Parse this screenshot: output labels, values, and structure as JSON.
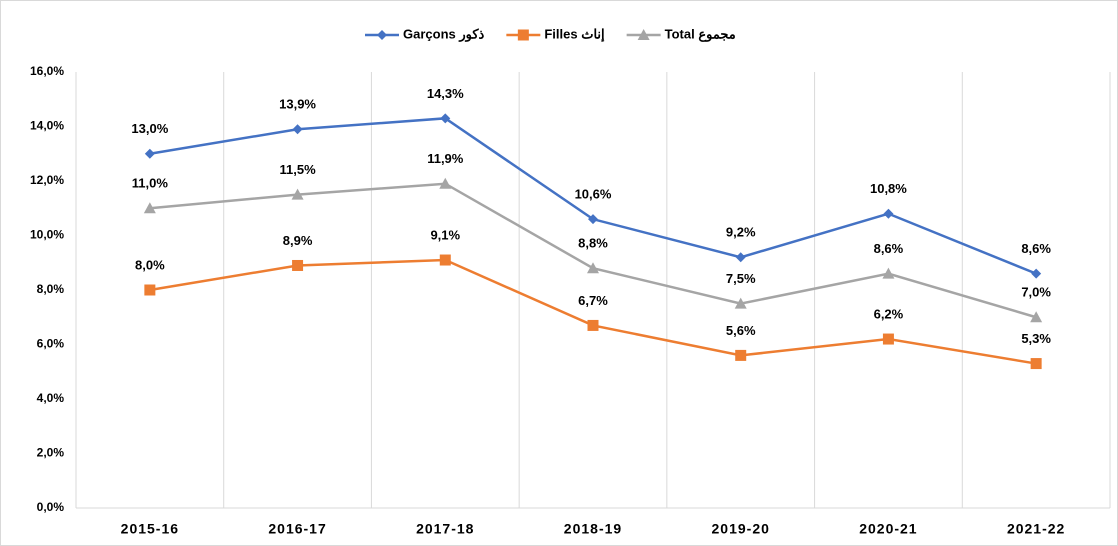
{
  "chart_data": {
    "type": "line",
    "categories": [
      "2015-16",
      "2016-17",
      "2017-18",
      "2018-19",
      "2019-20",
      "2020-21",
      "2021-22"
    ],
    "series": [
      {
        "name": "Garçons ذكور",
        "color": "#4472c4",
        "marker": "diamond",
        "values": [
          13.0,
          13.9,
          14.3,
          10.6,
          9.2,
          10.8,
          8.6
        ],
        "value_labels": [
          "13,0%",
          "13,9%",
          "14,3%",
          "10,6%",
          "9,2%",
          "10,8%",
          "8,6%"
        ]
      },
      {
        "name": "Filles إناث",
        "color": "#ed7d31",
        "marker": "square",
        "values": [
          8.0,
          8.9,
          9.1,
          6.7,
          5.6,
          6.2,
          5.3
        ],
        "value_labels": [
          "8,0%",
          "8,9%",
          "9,1%",
          "6,7%",
          "5,6%",
          "6,2%",
          "5,3%"
        ]
      },
      {
        "name": "Total مجموع",
        "color": "#a5a5a5",
        "marker": "triangle",
        "values": [
          11.0,
          11.5,
          11.9,
          8.8,
          7.5,
          8.6,
          7.0
        ],
        "value_labels": [
          "11,0%",
          "11,5%",
          "11,9%",
          "8,8%",
          "7,5%",
          "8,6%",
          "7,0%"
        ]
      }
    ],
    "ylim": [
      0,
      16
    ],
    "yticks": [
      {
        "value": 0,
        "label": "0,0%"
      },
      {
        "value": 2,
        "label": "2,0%"
      },
      {
        "value": 4,
        "label": "4,0%"
      },
      {
        "value": 6,
        "label": "6,0%"
      },
      {
        "value": 8,
        "label": "8,0%"
      },
      {
        "value": 10,
        "label": "10,0%"
      },
      {
        "value": 12,
        "label": "12,0%"
      },
      {
        "value": 14,
        "label": "14,0%"
      },
      {
        "value": 16,
        "label": "16,0%"
      }
    ],
    "grid": "x",
    "legend": "top"
  }
}
